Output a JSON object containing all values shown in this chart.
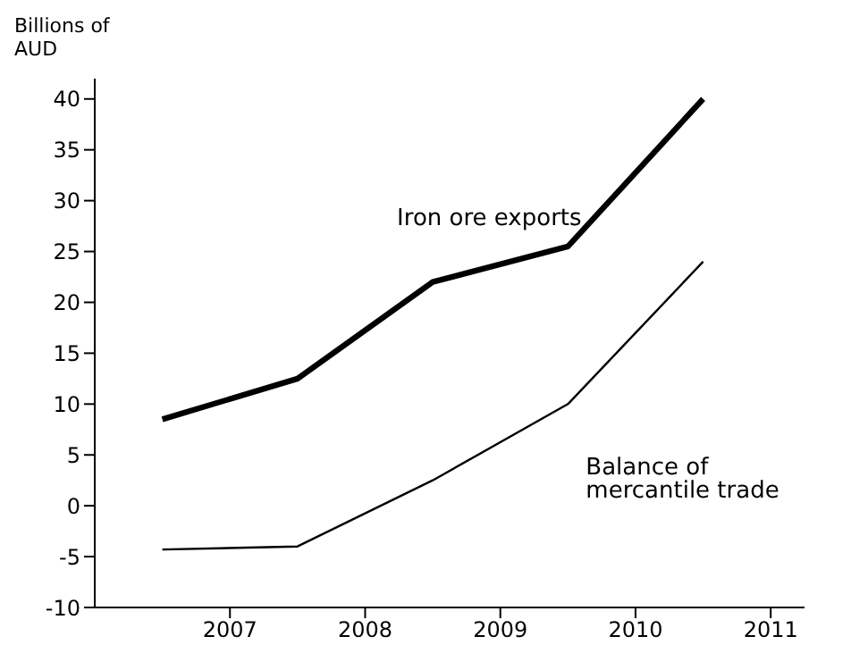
{
  "chart_data": {
    "type": "line",
    "ylabel": "Billions of AUD",
    "x": [
      2006.5,
      2007.5,
      2008.5,
      2009.5,
      2010.5
    ],
    "series": [
      {
        "name": "Iron ore exports",
        "color": "#000000",
        "values": [
          8.5,
          12.5,
          22,
          25.5,
          40
        ]
      },
      {
        "name": "Balance of mercantile trade",
        "color": "#000000",
        "values": [
          -4.3,
          -4,
          2.5,
          10,
          24
        ]
      }
    ],
    "xlim": [
      2006,
      2011.25
    ],
    "xticks": [
      2007,
      2008,
      2009,
      2010,
      2011
    ],
    "ylim": [
      -10,
      42
    ],
    "yticks": [
      -10,
      -5,
      0,
      5,
      10,
      15,
      20,
      25,
      30,
      35,
      40
    ],
    "grid": false,
    "legend": false,
    "marker": "none",
    "line_style": "solid"
  }
}
